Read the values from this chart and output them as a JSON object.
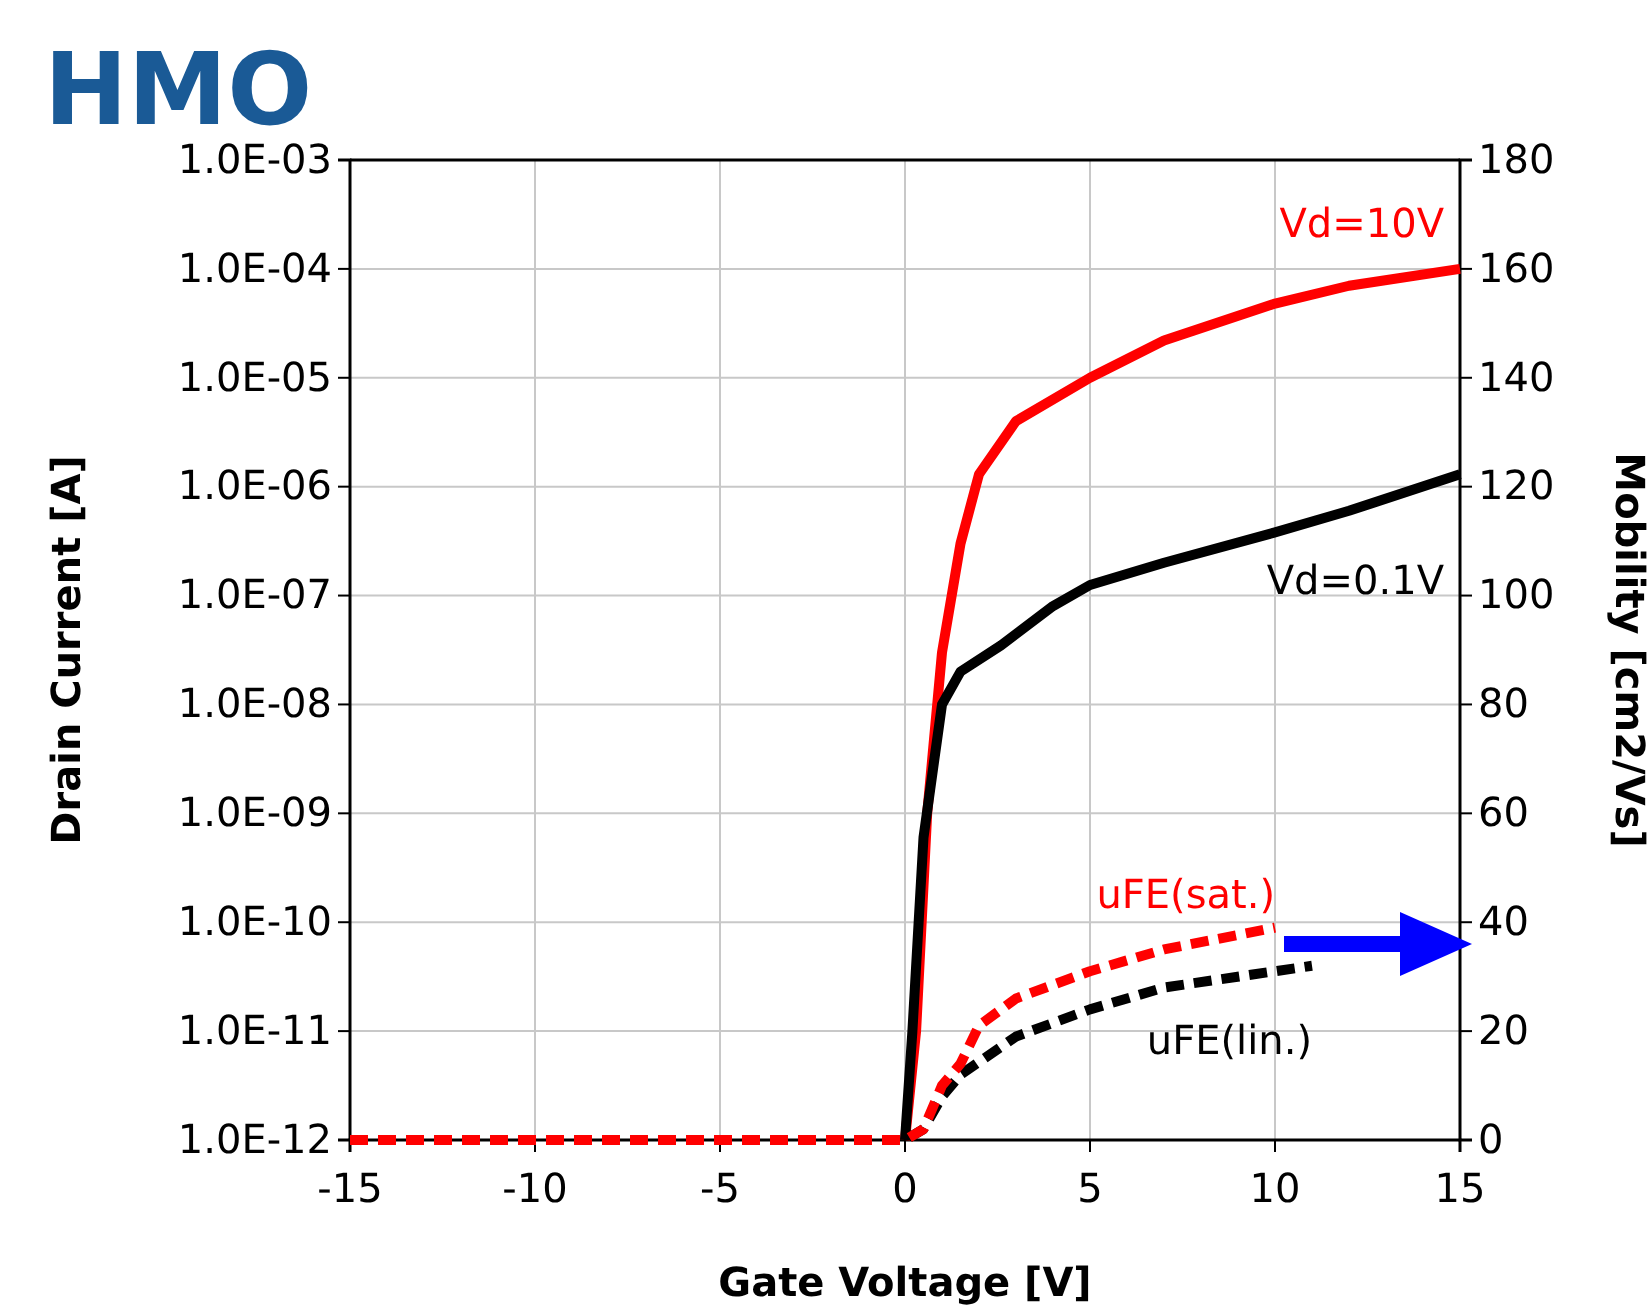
{
  "chart_data": {
    "type": "line",
    "title": "HMO",
    "xlabel": "Gate Voltage [V]",
    "ylabel": "Drain Current [A]",
    "y2label": "Mobility [cm2/Vs]",
    "log": "y",
    "grid": true,
    "marker": "none",
    "xlim": [
      -15,
      15
    ],
    "xticks": [
      -15,
      -10,
      -5,
      0,
      5,
      10,
      15
    ],
    "ylim": [
      1e-12,
      0.001
    ],
    "yticks": [
      {
        "value": 1e-12,
        "label": "1.0E-12"
      },
      {
        "value": 1e-11,
        "label": "1.0E-11"
      },
      {
        "value": 1e-10,
        "label": "1.0E-10"
      },
      {
        "value": 1e-09,
        "label": "1.0E-09"
      },
      {
        "value": 1e-08,
        "label": "1.0E-08"
      },
      {
        "value": 1e-07,
        "label": "1.0E-07"
      },
      {
        "value": 1e-06,
        "label": "1.0E-06"
      },
      {
        "value": 1e-05,
        "label": "1.0E-05"
      },
      {
        "value": 0.0001,
        "label": "1.0E-04"
      },
      {
        "value": 0.001,
        "label": "1.0E-03"
      }
    ],
    "y2lim": [
      0,
      180
    ],
    "y2ticks": [
      0,
      20,
      40,
      60,
      80,
      100,
      120,
      140,
      160,
      180
    ],
    "series": [
      {
        "name": "Vd=10V",
        "color": "#ff0000",
        "line_style": "solid",
        "x": [
          0,
          0.3,
          0.6,
          1,
          1.5,
          2,
          3,
          5,
          7,
          10,
          12,
          15
        ],
        "values": [
          1e-12,
          1e-11,
          1e-09,
          3e-08,
          3e-07,
          1.3e-06,
          4e-06,
          1e-05,
          2.2e-05,
          4.8e-05,
          7e-05,
          0.0001
        ]
      },
      {
        "name": "Vd=0.1V",
        "color": "#000000",
        "line_style": "solid",
        "x": [
          0,
          0.2,
          0.5,
          1,
          1.5,
          2.6,
          4,
          5,
          7,
          10,
          12,
          15
        ],
        "values": [
          1e-12,
          1e-11,
          6e-10,
          1e-08,
          2e-08,
          3.5e-08,
          8e-08,
          1.25e-07,
          2e-07,
          3.8e-07,
          6e-07,
          1.3e-06
        ]
      },
      {
        "name": "uFE(lin.)",
        "color": "#000000",
        "line_style": "dashed",
        "axis": "y2",
        "x": [
          -15,
          -10,
          -5,
          0,
          0.5,
          1,
          1.5,
          3,
          5,
          7,
          10,
          11
        ],
        "values": [
          0,
          0,
          0,
          0,
          2,
          8,
          12,
          19,
          24,
          28,
          31,
          32
        ]
      },
      {
        "name": "uFE(sat.)",
        "color": "#ff0000",
        "line_style": "dashed",
        "axis": "y2",
        "x": [
          -15,
          -10,
          -5,
          0,
          0.5,
          1,
          1.5,
          2,
          3,
          5,
          7,
          10
        ],
        "values": [
          0,
          0,
          0,
          0,
          2,
          10,
          14,
          21,
          26,
          31,
          35,
          39
        ]
      }
    ]
  }
}
